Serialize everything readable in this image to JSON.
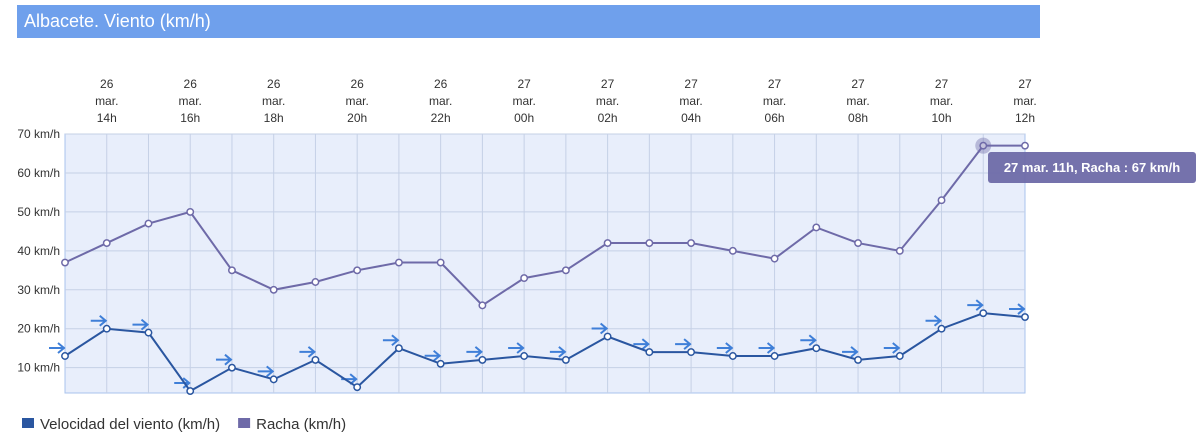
{
  "chart_data": {
    "type": "line",
    "title": "Albacete. Viento (km/h)",
    "categories": [
      null,
      [
        "26",
        "mar.",
        "14h"
      ],
      null,
      [
        "26",
        "mar.",
        "16h"
      ],
      null,
      [
        "26",
        "mar.",
        "18h"
      ],
      null,
      [
        "26",
        "mar.",
        "20h"
      ],
      null,
      [
        "26",
        "mar.",
        "22h"
      ],
      null,
      [
        "27",
        "mar.",
        "00h"
      ],
      null,
      [
        "27",
        "mar.",
        "02h"
      ],
      null,
      [
        "27",
        "mar.",
        "04h"
      ],
      null,
      [
        "27",
        "mar.",
        "06h"
      ],
      null,
      [
        "27",
        "mar.",
        "08h"
      ],
      null,
      [
        "27",
        "mar.",
        "10h"
      ],
      null,
      [
        "27",
        "mar.",
        "12h"
      ]
    ],
    "series": [
      {
        "name": "Velocidad del viento (km/h)",
        "color": "#2a56a0",
        "values": [
          13,
          20,
          19,
          4,
          10,
          7,
          12,
          5,
          15,
          11,
          12,
          13,
          12,
          18,
          14,
          14,
          13,
          13,
          15,
          12,
          13,
          20,
          24,
          23
        ]
      },
      {
        "name": "Racha (km/h)",
        "color": "#6e6aa8",
        "values": [
          37,
          42,
          47,
          50,
          35,
          30,
          32,
          35,
          37,
          37,
          26,
          33,
          35,
          42,
          42,
          42,
          40,
          38,
          46,
          42,
          40,
          53,
          67,
          67
        ]
      }
    ],
    "ylim": [
      3.5,
      70
    ],
    "yticks": [
      {
        "value": 10,
        "label": "10 km/h"
      },
      {
        "value": 20,
        "label": "20 km/h"
      },
      {
        "value": 30,
        "label": "30 km/h"
      },
      {
        "value": 40,
        "label": "40 km/h"
      },
      {
        "value": 50,
        "label": "50 km/h"
      },
      {
        "value": 60,
        "label": "60 km/h"
      },
      {
        "value": 70,
        "label": "70 km/h"
      }
    ],
    "grid": true,
    "legend": "bottom-left",
    "tooltip": "27 mar. 11h, Racha : 67 km/h"
  }
}
